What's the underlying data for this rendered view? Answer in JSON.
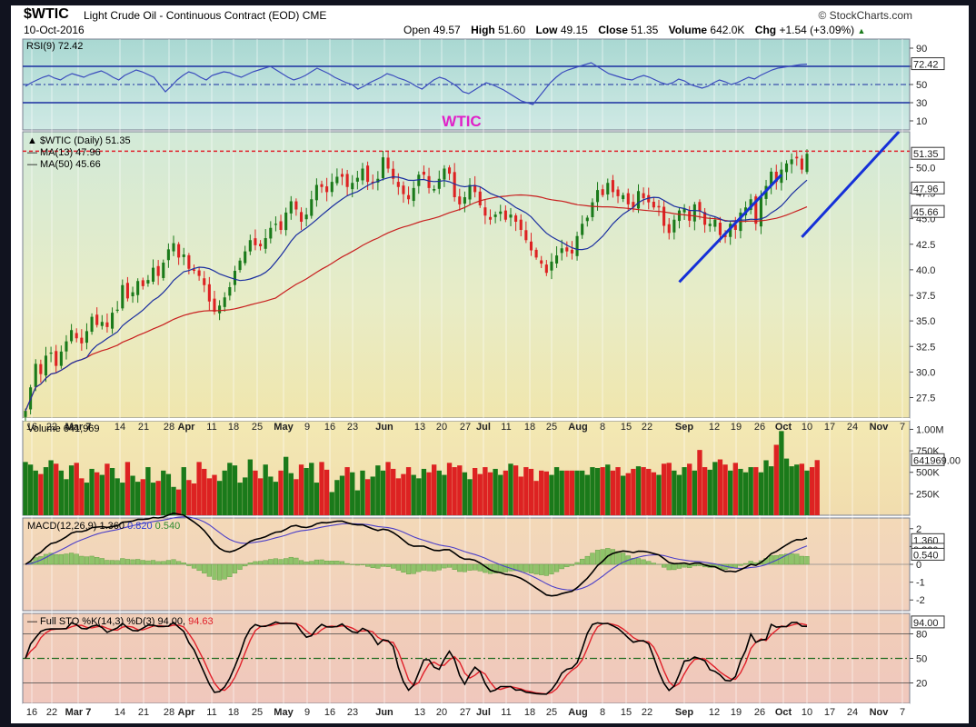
{
  "header": {
    "symbol": "$WTIC",
    "description": "Light Crude Oil - Continuous Contract (EOD)  CME",
    "date": "10-Oct-2016",
    "brand": "© StockCharts.com",
    "open_label": "Open",
    "open": "49.57",
    "high_label": "High",
    "high": "51.60",
    "low_label": "Low",
    "low": "49.15",
    "close_label": "Close",
    "close": "51.35",
    "volume_label": "Volume",
    "volume": "642.0K",
    "chg_label": "Chg",
    "chg": "+1.54 (+3.09%)",
    "chg_arrow": "▲"
  },
  "colors": {
    "up": "#1a7a1a",
    "down": "#dd2222",
    "ma13": "#1a2ea0",
    "ma50": "#c81e1e",
    "rsi": "#3a4bbd",
    "annotation": "#e020c8",
    "trend": "#1530d8"
  },
  "annotation_text": "WTIC",
  "x_axis_labels": [
    "16",
    "22",
    "Mar 7",
    "14",
    "21",
    "28",
    "Apr",
    "11",
    "18",
    "25",
    "May",
    "9",
    "16",
    "23",
    "Jun",
    "13",
    "20",
    "27",
    "Jul",
    "11",
    "18",
    "25",
    "Aug",
    "8",
    "15",
    "22",
    "Sep",
    "12",
    "19",
    "26",
    "Oct",
    "10",
    "17",
    "24",
    "Nov",
    "7"
  ],
  "chart_data": [
    {
      "type": "line",
      "panel": "rsi",
      "legend": "RSI(9) 72.42",
      "last_value": "72.42",
      "ylim": [
        0,
        100
      ],
      "y_ticks": [
        "90",
        "70",
        "50",
        "30",
        "10"
      ],
      "values": [
        48,
        52,
        55,
        58,
        60,
        57,
        55,
        59,
        62,
        60,
        58,
        61,
        63,
        65,
        62,
        58,
        55,
        60,
        63,
        66,
        64,
        61,
        58,
        50,
        42,
        48,
        55,
        60,
        64,
        62,
        58,
        55,
        60,
        62,
        64,
        63,
        60,
        58,
        61,
        64,
        66,
        68,
        70,
        66,
        62,
        58,
        55,
        57,
        60,
        64,
        68,
        65,
        62,
        58,
        55,
        52,
        50,
        45,
        48,
        52,
        55,
        58,
        62,
        60,
        57,
        55,
        52,
        48,
        45,
        50,
        55,
        58,
        56,
        52,
        48,
        42,
        40,
        44,
        48,
        52,
        50,
        47,
        44,
        40,
        36,
        32,
        30,
        28,
        36,
        44,
        52,
        58,
        63,
        66,
        68,
        70,
        72,
        74,
        70,
        66,
        62,
        60,
        58,
        56,
        55,
        58,
        60,
        58,
        55,
        52,
        50,
        52,
        56,
        54,
        50,
        48,
        46,
        48,
        52,
        55,
        53,
        50,
        52,
        55,
        58,
        56,
        60,
        63,
        66,
        68,
        69,
        70,
        71,
        72,
        72.42
      ]
    },
    {
      "type": "candlestick",
      "panel": "price",
      "title": "$WTIC (Daily) 51.35",
      "ylim": [
        25.5,
        53.5
      ],
      "y_ticks": [
        "50.0",
        "47.5",
        "45.0",
        "42.5",
        "40.0",
        "37.5",
        "35.0",
        "32.5",
        "30.0",
        "27.5"
      ],
      "closes": [
        26.2,
        28.5,
        30.8,
        29.8,
        31.6,
        31.9,
        30.6,
        32.0,
        33.0,
        34.1,
        33.3,
        32.8,
        34.0,
        35.4,
        34.6,
        34.9,
        34.4,
        35.8,
        36.1,
        38.5,
        37.2,
        37.8,
        38.9,
        38.4,
        39.0,
        40.2,
        39.4,
        40.7,
        42.0,
        42.6,
        41.2,
        41.5,
        40.1,
        39.9,
        39.4,
        38.5,
        36.9,
        35.9,
        36.5,
        37.3,
        38.3,
        39.9,
        40.9,
        41.8,
        42.9,
        42.4,
        42.3,
        43.1,
        44.1,
        44.5,
        43.9,
        45.6,
        46.7,
        45.9,
        44.7,
        45.4,
        46.9,
        48.3,
        48.1,
        47.6,
        48.6,
        49.1,
        49.1,
        48.1,
        48.5,
        49.0,
        49.9,
        48.6,
        48.6,
        48.9,
        51.0,
        49.9,
        48.9,
        48.1,
        47.4,
        46.9,
        48.0,
        49.3,
        49.3,
        48.0,
        47.9,
        48.9,
        49.9,
        49.4,
        47.1,
        46.4,
        47.1,
        48.3,
        47.6,
        46.3,
        45.3,
        44.9,
        45.4,
        45.7,
        44.9,
        45.4,
        44.7,
        43.9,
        42.9,
        41.9,
        41.2,
        40.6,
        39.7,
        40.8,
        41.4,
        42.1,
        41.8,
        41.6,
        43.3,
        44.5,
        45.1,
        46.6,
        47.8,
        47.3,
        48.5,
        47.6,
        47.2,
        47.3,
        46.4,
        46.1,
        47.7,
        47.0,
        46.6,
        46.1,
        46.1,
        44.3,
        43.6,
        44.9,
        45.8,
        46.0,
        44.8,
        46.4,
        45.7,
        44.4,
        44.5,
        44.9,
        43.4,
        43.2,
        44.5,
        43.9,
        45.6,
        46.1,
        46.9,
        44.5,
        47.1,
        48.2,
        49.6,
        48.6,
        49.8,
        50.4,
        50.8,
        50.9,
        49.8,
        51.35
      ],
      "series": [
        {
          "name": "MA(13) 47.96",
          "last_value": "47.96"
        },
        {
          "name": "MA(50) 45.66",
          "last_value": "45.66"
        }
      ],
      "close_label": "51.35",
      "reference_line": 51.6
    },
    {
      "type": "bar",
      "panel": "volume",
      "legend": "Volume 641,969",
      "last_value": "641969.00",
      "ylim": [
        0,
        1100
      ],
      "y_ticks": [
        "1.00M",
        "750K",
        "500K",
        "250K"
      ],
      "values_k": [
        620,
        590,
        520,
        480,
        560,
        640,
        600,
        520,
        420,
        580,
        610,
        430,
        380,
        540,
        500,
        470,
        600,
        550,
        430,
        380,
        620,
        460,
        390,
        420,
        560,
        380,
        400,
        520,
        480,
        330,
        300,
        560,
        410,
        370,
        620,
        540,
        430,
        470,
        400,
        520,
        610,
        580,
        380,
        440,
        650,
        520,
        430,
        590,
        450,
        390,
        520,
        680,
        490,
        420,
        590,
        550,
        610,
        380,
        620,
        530,
        270,
        410,
        460,
        560,
        500,
        290,
        520,
        420,
        450,
        580,
        520,
        620,
        540,
        430,
        480,
        560,
        470,
        430,
        540,
        500,
        590,
        520,
        470,
        610,
        560,
        580,
        500,
        420,
        550,
        480,
        560,
        500,
        540,
        470,
        520,
        600,
        580,
        450,
        560,
        540,
        400,
        520,
        510,
        470,
        560,
        520,
        520,
        520,
        520,
        520,
        470,
        560,
        550,
        560,
        590,
        520,
        560,
        460,
        490,
        540,
        570,
        560,
        540,
        500,
        470,
        600,
        610,
        520,
        470,
        560,
        600,
        520,
        760,
        560,
        530,
        620,
        650,
        590,
        520,
        610,
        540,
        500,
        560,
        560,
        500,
        640,
        570,
        820,
        980,
        660,
        570,
        590,
        600,
        520,
        560,
        642
      ]
    },
    {
      "type": "line",
      "panel": "macd",
      "legend_name": "MACD(12,26,9)",
      "legend_values": [
        "1.360",
        "0.820",
        "0.540"
      ],
      "ylim": [
        -2.6,
        2.6
      ],
      "y_ticks": [
        "2",
        "1",
        "0",
        "-1",
        "-2"
      ],
      "label_values": [
        "1.360",
        "0.820",
        "0.540"
      ]
    },
    {
      "type": "line",
      "panel": "stochastic",
      "legend_name": "Full STO %K(14,3) %D(3)",
      "legend_values": [
        "94.00",
        "94.63"
      ],
      "ylim": [
        0,
        100
      ],
      "y_ticks": [
        "80",
        "50",
        "20"
      ],
      "label_value": "94.00"
    }
  ]
}
